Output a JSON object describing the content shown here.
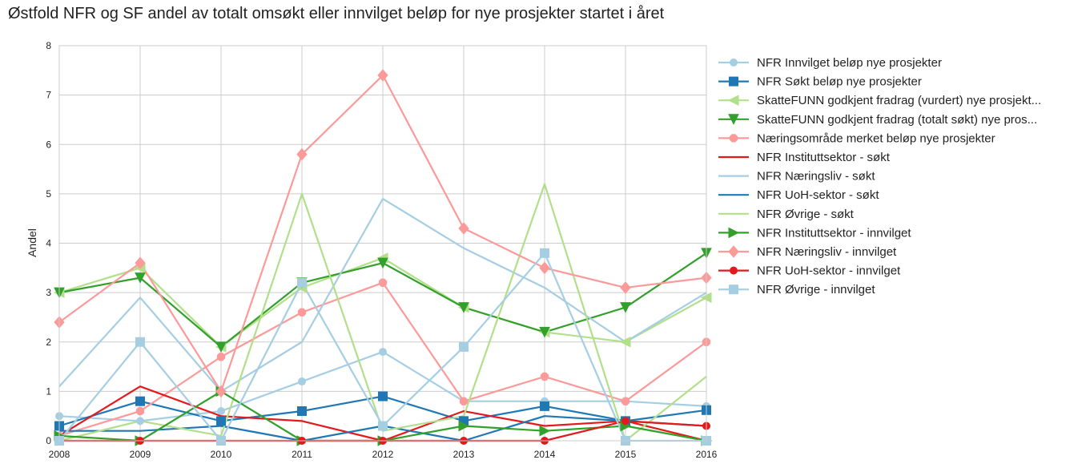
{
  "chart_data": {
    "type": "line",
    "title": "Østfold NFR og SF andel av totalt omsøkt eller innvilget beløp for nye prosjekter startet i året",
    "xlabel": "",
    "ylabel": "Andel",
    "x": [
      2008,
      2009,
      2010,
      2011,
      2012,
      2013,
      2014,
      2015,
      2016
    ],
    "xlim": [
      2008,
      2016
    ],
    "ylim": [
      0,
      8
    ],
    "yticks": [
      0,
      1,
      2,
      3,
      4,
      5,
      6,
      7,
      8
    ],
    "grid": true,
    "legend_position": "outside-right",
    "series": [
      {
        "name": "NFR Innvilget beløp nye prosjekter",
        "color": "#a6cee3",
        "marker": "circle",
        "values": [
          0.5,
          0.4,
          0.6,
          1.2,
          1.8,
          0.8,
          0.8,
          0.8,
          0.7
        ]
      },
      {
        "name": "NFR Søkt beløp nye prosjekter",
        "color": "#1f78b4",
        "marker": "square",
        "values": [
          0.3,
          0.8,
          0.4,
          0.6,
          0.9,
          0.4,
          0.7,
          0.4,
          0.62
        ]
      },
      {
        "name": "SkatteFUNN godkjent fradrag (vurdert) nye prosjekt...",
        "color": "#b2df8a",
        "marker": "triangle-left",
        "values": [
          3.0,
          3.5,
          1.9,
          3.1,
          3.7,
          2.7,
          2.2,
          2.0,
          2.9
        ]
      },
      {
        "name": "SkatteFUNN godkjent fradrag (totalt søkt) nye pros...",
        "color": "#33a02c",
        "marker": "triangle-down",
        "values": [
          3.0,
          3.3,
          1.9,
          3.2,
          3.6,
          2.7,
          2.2,
          2.7,
          3.8
        ]
      },
      {
        "name": "Næringsområde merket beløp nye prosjekter",
        "color": "#fb9a99",
        "marker": "octagon",
        "values": [
          0.1,
          0.6,
          1.7,
          2.6,
          3.2,
          0.8,
          1.3,
          0.8,
          2.0
        ]
      },
      {
        "name": "NFR Instituttsektor - søkt",
        "color": "#e31a1c",
        "marker": "none",
        "values": [
          0.1,
          1.1,
          0.5,
          0.4,
          0.0,
          0.6,
          0.3,
          0.4,
          0.0
        ]
      },
      {
        "name": "NFR Næringsliv - søkt",
        "color": "#a6cee3",
        "marker": "none",
        "values": [
          1.1,
          2.9,
          1.0,
          2.0,
          4.9,
          3.9,
          3.1,
          2.0,
          3.0
        ]
      },
      {
        "name": "NFR UoH-sektor - søkt",
        "color": "#1f78b4",
        "marker": "none",
        "values": [
          0.2,
          0.2,
          0.3,
          0.0,
          0.3,
          0.0,
          0.5,
          0.4,
          0.3
        ]
      },
      {
        "name": "NFR Øvrige - søkt",
        "color": "#b2df8a",
        "marker": "none",
        "values": [
          0.0,
          0.4,
          0.1,
          5.0,
          0.2,
          0.5,
          5.2,
          0.0,
          1.3
        ]
      },
      {
        "name": "NFR Instituttsektor - innvilget",
        "color": "#33a02c",
        "marker": "triangle-right",
        "values": [
          0.1,
          0.0,
          1.0,
          0.0,
          0.0,
          0.3,
          0.2,
          0.3,
          0.0
        ]
      },
      {
        "name": "NFR Næringsliv - innvilget",
        "color": "#fb9a99",
        "marker": "diamond",
        "values": [
          2.4,
          3.6,
          1.0,
          5.8,
          7.4,
          4.3,
          3.5,
          3.1,
          3.3
        ]
      },
      {
        "name": "NFR UoH-sektor - innvilget",
        "color": "#e31a1c",
        "marker": "circle",
        "values": [
          0.0,
          0.0,
          0.0,
          0.0,
          0.0,
          0.0,
          0.0,
          0.4,
          0.3
        ]
      },
      {
        "name": "NFR Øvrige - innvilget",
        "color": "#a6cee3",
        "marker": "square",
        "values": [
          0.0,
          2.0,
          0.0,
          3.2,
          0.3,
          1.9,
          3.8,
          0.0,
          0.0
        ]
      }
    ]
  }
}
